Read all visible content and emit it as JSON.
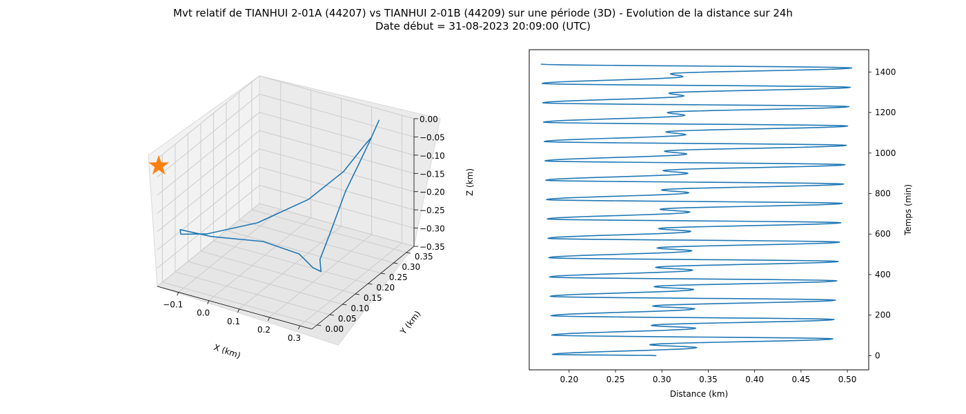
{
  "figure": {
    "title_line1": "Mvt relatif de TIANHUI 2-01A (44207) vs TIANHUI 2-01B (44209) sur une période (3D) - Evolution de la distance sur 24h",
    "title_line2": "Date début = 31-08-2023 20:09:00 (UTC)"
  },
  "colors": {
    "series": "#1f77b4",
    "marker": "#ff7f0e",
    "pane": "#f2f2f2",
    "grid": "#cccccc"
  },
  "chart_data": [
    {
      "type": "line3d",
      "xlabel": "X (km)",
      "ylabel": "Y (km)",
      "zlabel": "Z (km)",
      "xlim": [
        -0.17,
        0.34
      ],
      "ylim": [
        -0.02,
        0.38
      ],
      "zlim": [
        -0.35,
        0.0
      ],
      "x_ticks": [
        -0.1,
        0.0,
        0.1,
        0.2,
        0.3
      ],
      "x_tick_labels": [
        "−0.1",
        "0.0",
        "0.1",
        "0.2",
        "0.3"
      ],
      "y_ticks": [
        0.0,
        0.05,
        0.1,
        0.15,
        0.2,
        0.25,
        0.3,
        0.35
      ],
      "y_tick_labels": [
        "0.00",
        "0.05",
        "0.10",
        "0.15",
        "0.20",
        "0.25",
        "0.30",
        "0.35"
      ],
      "z_ticks": [
        0.0,
        -0.05,
        -0.1,
        -0.15,
        -0.2,
        -0.25,
        -0.3,
        -0.35
      ],
      "z_tick_labels": [
        "0.00",
        "−0.05",
        "−0.10",
        "−0.15",
        "−0.20",
        "−0.25",
        "−0.30",
        "−0.35"
      ],
      "grid": true,
      "series": [
        {
          "points": [
            [
              0.236,
              0.367,
              -0.02
            ],
            [
              0.23,
              0.34,
              -0.06
            ],
            [
              0.223,
              0.3,
              -0.11
            ],
            [
              0.215,
              0.26,
              -0.16
            ],
            [
              0.215,
              0.2,
              -0.24
            ],
            [
              0.215,
              0.16,
              -0.29
            ],
            [
              0.21,
              0.17,
              -0.33
            ],
            [
              0.2,
              0.15,
              -0.31
            ],
            [
              0.18,
              0.12,
              -0.26
            ],
            [
              0.12,
              0.05,
              -0.2
            ],
            [
              0.0,
              -0.01,
              -0.18
            ],
            [
              -0.12,
              0.01,
              -0.2
            ],
            [
              -0.16,
              0.06,
              -0.25
            ],
            [
              -0.14,
              0.14,
              -0.29
            ],
            [
              -0.05,
              0.23,
              -0.29
            ],
            [
              0.06,
              0.3,
              -0.24
            ],
            [
              0.15,
              0.33,
              -0.16
            ],
            [
              0.2,
              0.35,
              -0.09
            ],
            [
              0.215,
              0.36,
              -0.07
            ]
          ]
        }
      ],
      "marker": {
        "shape": "star",
        "point": [
          -0.167,
          -0.018,
          -0.02
        ]
      }
    },
    {
      "type": "line",
      "xlabel": "Distance (km)",
      "ylabel": "Temps (min)",
      "xlim": [
        0.157,
        0.523
      ],
      "ylim": [
        -70,
        1510
      ],
      "x_ticks": [
        0.2,
        0.25,
        0.3,
        0.35,
        0.4,
        0.45,
        0.5
      ],
      "x_tick_labels": [
        "0.20",
        "0.25",
        "0.30",
        "0.35",
        "0.40",
        "0.45",
        "0.50"
      ],
      "y_ticks": [
        0,
        200,
        400,
        600,
        800,
        1000,
        1200,
        1400
      ],
      "y_tick_labels": [
        "0",
        "200",
        "400",
        "600",
        "800",
        "1000",
        "1200",
        "1400"
      ],
      "y_axis_side": "right",
      "grid": false,
      "start_time": 0,
      "end_time": 1440,
      "start_distance": 0.294,
      "end_distance": 0.17,
      "period": 95.5,
      "first_min_time": 6,
      "first_max_time": 83,
      "inner_max_time": 40,
      "inner_min_time": 54,
      "min_distance": {
        "start": 0.182,
        "end": 0.17
      },
      "max_distance": {
        "start": 0.483,
        "end": 0.505
      },
      "inner_max_distance": {
        "start": 0.338,
        "end": 0.322
      },
      "inner_min_distance": {
        "start": 0.286,
        "end": 0.31
      }
    }
  ]
}
